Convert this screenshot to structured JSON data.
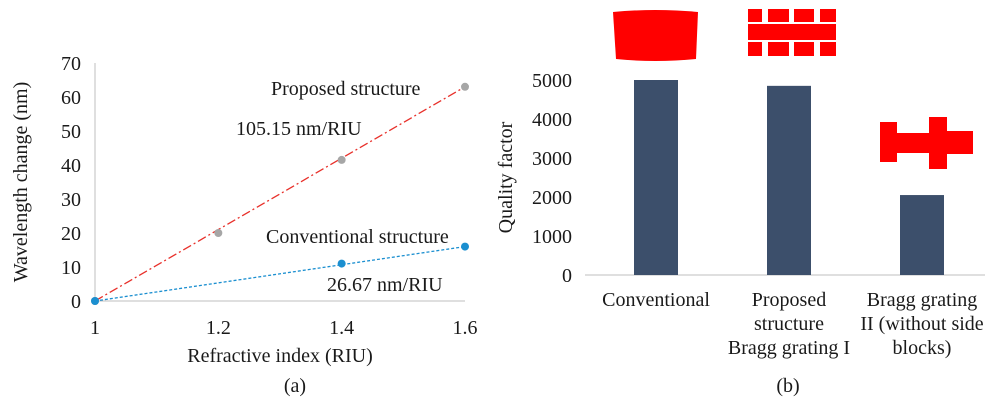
{
  "chart_data": [
    {
      "type": "line",
      "panel_label": "(a)",
      "xlabel": "Refractive index (RIU)",
      "ylabel": "Wavelength change (nm)",
      "xlim": [
        1,
        1.6
      ],
      "ylim": [
        0,
        70
      ],
      "x_ticks": [
        "1",
        "1.2",
        "1.4",
        "1.6"
      ],
      "y_ticks": [
        "0",
        "10",
        "20",
        "30",
        "40",
        "50",
        "60",
        "70"
      ],
      "grid": false,
      "series": [
        {
          "name": "Proposed structure",
          "annotation": "105.15 nm/RIU",
          "color": "#e8302a",
          "marker_color": "#a6a6a6",
          "line_style": "dash-dot",
          "x": [
            1.0,
            1.2,
            1.4,
            1.6
          ],
          "y": [
            0,
            20,
            41.5,
            63
          ]
        },
        {
          "name": "Conventional structure",
          "annotation": "26.67 nm/RIU",
          "color": "#1b8fd0",
          "marker_color": "#1b8fd0",
          "line_style": "dotted",
          "x": [
            1.0,
            1.4,
            1.6
          ],
          "y": [
            0,
            11,
            16
          ]
        }
      ]
    },
    {
      "type": "bar",
      "panel_label": "(b)",
      "ylabel": "Quality factor",
      "ylim": [
        0,
        5000
      ],
      "y_ticks": [
        "0",
        "1000",
        "2000",
        "3000",
        "4000",
        "5000"
      ],
      "grid": false,
      "bar_color": "#3c4f6b",
      "categories": [
        [
          "Conventional"
        ],
        [
          "Proposed",
          "structure",
          "Bragg grating I"
        ],
        [
          "Bragg grating",
          "II (without side",
          "blocks)"
        ]
      ],
      "values": [
        5000,
        4850,
        2050
      ],
      "inset_color": "#ff0000"
    }
  ]
}
